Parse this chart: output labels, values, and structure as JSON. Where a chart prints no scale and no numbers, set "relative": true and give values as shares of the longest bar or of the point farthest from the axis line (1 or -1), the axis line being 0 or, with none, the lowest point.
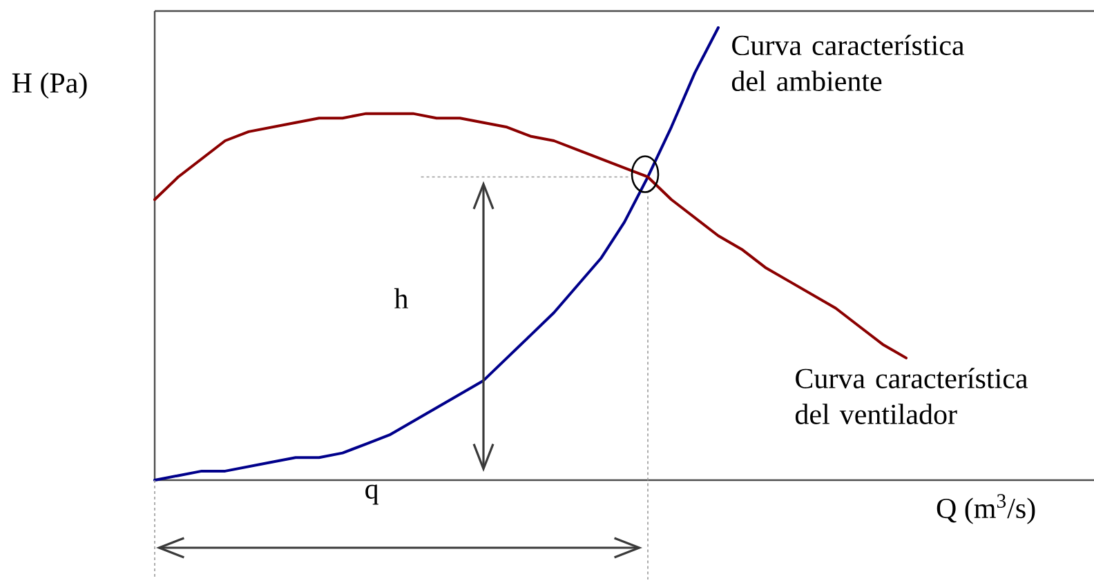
{
  "chart_data": {
    "type": "line",
    "relative": true,
    "ylabel": "H (Pa)",
    "xlabel": "Q (m$^{3}$/s)",
    "categories": [
      null,
      null,
      null,
      null,
      null,
      null,
      null,
      null,
      null,
      null,
      null,
      null,
      null,
      null,
      null,
      null,
      null,
      null,
      null,
      null,
      null,
      null,
      null,
      null,
      null,
      null,
      null,
      null,
      null,
      null,
      null,
      null,
      null,
      null,
      null,
      null,
      null,
      null,
      null,
      null,
      null
    ],
    "series": [
      {
        "name": "Curva característica del ambiente",
        "color": "#00008b",
        "values": [
          0,
          0.01,
          0.02,
          0.02,
          0.03,
          0.04,
          0.05,
          0.05,
          0.06,
          0.08,
          0.1,
          0.13,
          0.16,
          0.19,
          0.22,
          0.27,
          0.32,
          0.37,
          0.43,
          0.49,
          0.57,
          0.67,
          0.78,
          0.9,
          1,
          null,
          null,
          null,
          null,
          null,
          null,
          null,
          null,
          null,
          null,
          null,
          null,
          null,
          null,
          null,
          null
        ]
      },
      {
        "name": "Curva característica del ventilador",
        "color": "#8b0000",
        "values": [
          0.62,
          0.67,
          0.71,
          0.75,
          0.77,
          0.78,
          0.79,
          0.8,
          0.8,
          0.81,
          0.81,
          0.81,
          0.8,
          0.8,
          0.79,
          0.78,
          0.76,
          0.75,
          0.73,
          0.71,
          0.69,
          0.67,
          0.62,
          0.58,
          0.54,
          0.51,
          0.47,
          0.44,
          0.41,
          0.38,
          0.34,
          0.3,
          0.27,
          null,
          null,
          null,
          null,
          null,
          null,
          null,
          null
        ]
      }
    ],
    "ref_lines": [
      {
        "axis": "y",
        "value": 0.67,
        "color": "#999999",
        "line_style": "dotted"
      }
    ],
    "annotations": [
      "h",
      "q"
    ]
  }
}
